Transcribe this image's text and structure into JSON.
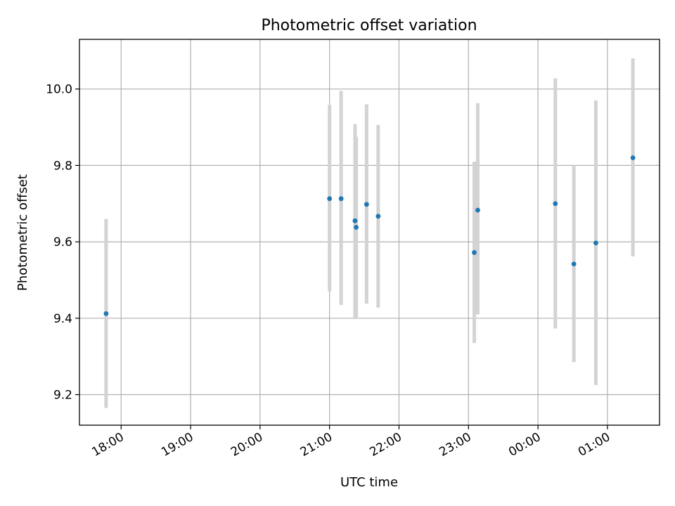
{
  "chart_data": {
    "type": "scatter",
    "title": "Photometric offset variation",
    "xlabel": "UTC time",
    "ylabel": "Photometric offset",
    "x_axis_type": "time",
    "x_range": [
      "17:24",
      "01:45"
    ],
    "x_ticks": [
      "18:00",
      "19:00",
      "20:00",
      "21:00",
      "22:00",
      "23:00",
      "00:00",
      "01:00"
    ],
    "ylim": [
      9.12,
      10.13
    ],
    "y_ticks": [
      9.2,
      9.4,
      9.6,
      9.8,
      10.0
    ],
    "y_tick_labels": [
      "9.2",
      "9.4",
      "9.6",
      "9.8",
      "10.0"
    ],
    "grid": true,
    "colors": {
      "point": "#1f77b4",
      "errorbar": "#d3d3d3"
    },
    "points": [
      {
        "x": "17:47",
        "y": 9.412,
        "y_low": 9.165,
        "y_high": 9.66
      },
      {
        "x": "21:00",
        "y": 9.713,
        "y_low": 9.47,
        "y_high": 9.958
      },
      {
        "x": "21:10",
        "y": 9.713,
        "y_low": 9.435,
        "y_high": 9.995
      },
      {
        "x": "21:22",
        "y": 9.655,
        "y_low": 9.4,
        "y_high": 9.908
      },
      {
        "x": "21:23",
        "y": 9.638,
        "y_low": 9.402,
        "y_high": 9.875
      },
      {
        "x": "21:32",
        "y": 9.698,
        "y_low": 9.438,
        "y_high": 9.96
      },
      {
        "x": "21:42",
        "y": 9.667,
        "y_low": 9.428,
        "y_high": 9.906
      },
      {
        "x": "23:05",
        "y": 9.572,
        "y_low": 9.335,
        "y_high": 9.81
      },
      {
        "x": "23:08",
        "y": 9.683,
        "y_low": 9.41,
        "y_high": 9.963
      },
      {
        "x": "00:15",
        "y": 9.7,
        "y_low": 9.373,
        "y_high": 10.028
      },
      {
        "x": "00:31",
        "y": 9.542,
        "y_low": 9.285,
        "y_high": 9.8
      },
      {
        "x": "00:50",
        "y": 9.597,
        "y_low": 9.225,
        "y_high": 9.97
      },
      {
        "x": "01:22",
        "y": 9.82,
        "y_low": 9.562,
        "y_high": 10.08
      }
    ]
  }
}
